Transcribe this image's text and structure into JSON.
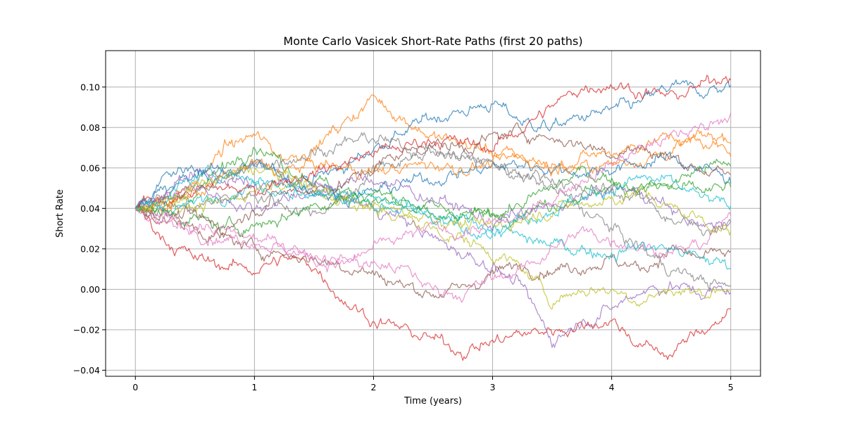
{
  "chart_data": {
    "type": "line",
    "title": "Monte Carlo Vasicek Short-Rate Paths (first 20 paths)",
    "xlabel": "Time (years)",
    "ylabel": "Short Rate",
    "xlim": [
      -0.25,
      5.25
    ],
    "ylim": [
      -0.043,
      0.118
    ],
    "xticks": [
      0,
      1,
      2,
      3,
      4,
      5
    ],
    "xtick_labels": [
      "0",
      "1",
      "2",
      "3",
      "4",
      "5"
    ],
    "yticks": [
      -0.04,
      -0.02,
      0.0,
      0.02,
      0.04,
      0.06,
      0.08,
      0.1
    ],
    "ytick_labels": [
      "−0.04",
      "−0.02",
      "0.00",
      "0.02",
      "0.04",
      "0.06",
      "0.08",
      "0.10"
    ],
    "grid": true,
    "legend": "none",
    "colors": [
      "#1f77b4",
      "#ff7f0e",
      "#2ca02c",
      "#d62728",
      "#9467bd",
      "#8c564b",
      "#e377c2",
      "#7f7f7f",
      "#bcbd22",
      "#17becf"
    ],
    "x": [
      0,
      0.25,
      0.5,
      0.75,
      1.0,
      1.25,
      1.5,
      1.75,
      2.0,
      2.25,
      2.5,
      2.75,
      3.0,
      3.25,
      3.5,
      3.75,
      4.0,
      4.25,
      4.5,
      4.75,
      5.0
    ],
    "series": [
      {
        "values": [
          0.04,
          0.05,
          0.055,
          0.058,
          0.06,
          0.057,
          0.055,
          0.06,
          0.07,
          0.078,
          0.085,
          0.088,
          0.092,
          0.083,
          0.08,
          0.085,
          0.088,
          0.092,
          0.1,
          0.098,
          0.1
        ]
      },
      {
        "values": [
          0.04,
          0.045,
          0.052,
          0.07,
          0.076,
          0.065,
          0.07,
          0.082,
          0.095,
          0.085,
          0.075,
          0.072,
          0.068,
          0.065,
          0.062,
          0.06,
          0.062,
          0.065,
          0.068,
          0.075,
          0.076
        ]
      },
      {
        "values": [
          0.04,
          0.042,
          0.048,
          0.06,
          0.073,
          0.062,
          0.055,
          0.048,
          0.045,
          0.04,
          0.035,
          0.034,
          0.038,
          0.042,
          0.05,
          0.058,
          0.055,
          0.05,
          0.052,
          0.06,
          0.062
        ]
      },
      {
        "values": [
          0.04,
          0.025,
          0.015,
          0.012,
          0.01,
          0.015,
          0.012,
          -0.005,
          -0.015,
          -0.02,
          -0.025,
          -0.03,
          -0.026,
          -0.022,
          -0.02,
          -0.018,
          -0.015,
          -0.028,
          -0.032,
          -0.02,
          -0.012
        ]
      },
      {
        "values": [
          0.04,
          0.048,
          0.058,
          0.055,
          0.05,
          0.052,
          0.05,
          0.045,
          0.04,
          0.035,
          0.025,
          0.018,
          0.012,
          0.0,
          -0.025,
          -0.015,
          -0.01,
          0.0,
          0.002,
          -0.002,
          0.0
        ]
      },
      {
        "values": [
          0.04,
          0.035,
          0.03,
          0.025,
          0.02,
          0.018,
          0.015,
          0.012,
          0.008,
          0.002,
          -0.002,
          0.0,
          0.008,
          0.012,
          0.01,
          0.012,
          0.015,
          0.01,
          0.02,
          0.015,
          0.018
        ]
      },
      {
        "values": [
          0.04,
          0.03,
          0.032,
          0.028,
          0.025,
          0.022,
          0.018,
          0.015,
          0.012,
          0.01,
          0.0,
          -0.002,
          0.005,
          0.01,
          0.02,
          0.028,
          0.025,
          0.022,
          0.018,
          0.022,
          0.035
        ]
      },
      {
        "values": [
          0.04,
          0.042,
          0.04,
          0.045,
          0.048,
          0.042,
          0.038,
          0.045,
          0.058,
          0.065,
          0.07,
          0.066,
          0.062,
          0.055,
          0.05,
          0.04,
          0.03,
          0.02,
          0.01,
          0.005,
          0.0
        ]
      },
      {
        "values": [
          0.04,
          0.045,
          0.04,
          0.042,
          0.05,
          0.055,
          0.048,
          0.045,
          0.04,
          0.035,
          0.03,
          0.025,
          0.018,
          0.01,
          -0.005,
          0.0,
          0.0,
          -0.005,
          0.0,
          -0.002,
          0.002
        ]
      },
      {
        "values": [
          0.04,
          0.04,
          0.042,
          0.048,
          0.052,
          0.05,
          0.048,
          0.05,
          0.045,
          0.04,
          0.035,
          0.028,
          0.03,
          0.025,
          0.022,
          0.02,
          0.018,
          0.022,
          0.02,
          0.015,
          0.012
        ]
      },
      {
        "values": [
          0.04,
          0.055,
          0.06,
          0.058,
          0.062,
          0.055,
          0.05,
          0.045,
          0.048,
          0.052,
          0.055,
          0.058,
          0.06,
          0.062,
          0.06,
          0.058,
          0.06,
          0.062,
          0.065,
          0.06,
          0.055
        ]
      },
      {
        "values": [
          0.04,
          0.04,
          0.048,
          0.055,
          0.062,
          0.058,
          0.062,
          0.06,
          0.058,
          0.06,
          0.062,
          0.06,
          0.062,
          0.065,
          0.06,
          0.065,
          0.068,
          0.072,
          0.075,
          0.072,
          0.07
        ]
      },
      {
        "values": [
          0.04,
          0.038,
          0.035,
          0.03,
          0.032,
          0.036,
          0.042,
          0.045,
          0.048,
          0.045,
          0.04,
          0.038,
          0.036,
          0.04,
          0.042,
          0.048,
          0.05,
          0.052,
          0.05,
          0.048,
          0.05
        ]
      },
      {
        "values": [
          0.04,
          0.045,
          0.048,
          0.05,
          0.048,
          0.055,
          0.058,
          0.062,
          0.068,
          0.07,
          0.075,
          0.072,
          0.07,
          0.08,
          0.09,
          0.1,
          0.102,
          0.098,
          0.095,
          0.1,
          0.108
        ]
      },
      {
        "values": [
          0.04,
          0.045,
          0.05,
          0.045,
          0.04,
          0.045,
          0.05,
          0.052,
          0.055,
          0.05,
          0.045,
          0.04,
          0.032,
          0.038,
          0.04,
          0.045,
          0.05,
          0.048,
          0.04,
          0.03,
          0.035
        ]
      },
      {
        "values": [
          0.04,
          0.038,
          0.035,
          0.03,
          0.04,
          0.048,
          0.05,
          0.052,
          0.06,
          0.068,
          0.072,
          0.07,
          0.075,
          0.078,
          0.075,
          0.072,
          0.068,
          0.07,
          0.065,
          0.06,
          0.055
        ]
      },
      {
        "values": [
          0.04,
          0.035,
          0.03,
          0.025,
          0.025,
          0.02,
          0.015,
          0.012,
          0.02,
          0.025,
          0.03,
          0.028,
          0.032,
          0.035,
          0.045,
          0.055,
          0.062,
          0.07,
          0.075,
          0.08,
          0.088
        ]
      },
      {
        "values": [
          0.04,
          0.045,
          0.05,
          0.055,
          0.06,
          0.065,
          0.068,
          0.072,
          0.075,
          0.07,
          0.068,
          0.065,
          0.062,
          0.058,
          0.055,
          0.05,
          0.048,
          0.045,
          0.035,
          0.03,
          0.032
        ]
      },
      {
        "values": [
          0.04,
          0.042,
          0.05,
          0.055,
          0.06,
          0.055,
          0.05,
          0.045,
          0.04,
          0.038,
          0.036,
          0.032,
          0.03,
          0.035,
          0.04,
          0.042,
          0.045,
          0.048,
          0.04,
          0.035,
          0.028
        ]
      },
      {
        "values": [
          0.04,
          0.045,
          0.055,
          0.058,
          0.055,
          0.052,
          0.048,
          0.045,
          0.042,
          0.04,
          0.036,
          0.034,
          0.032,
          0.035,
          0.04,
          0.045,
          0.05,
          0.055,
          0.052,
          0.045,
          0.04
        ]
      }
    ]
  }
}
